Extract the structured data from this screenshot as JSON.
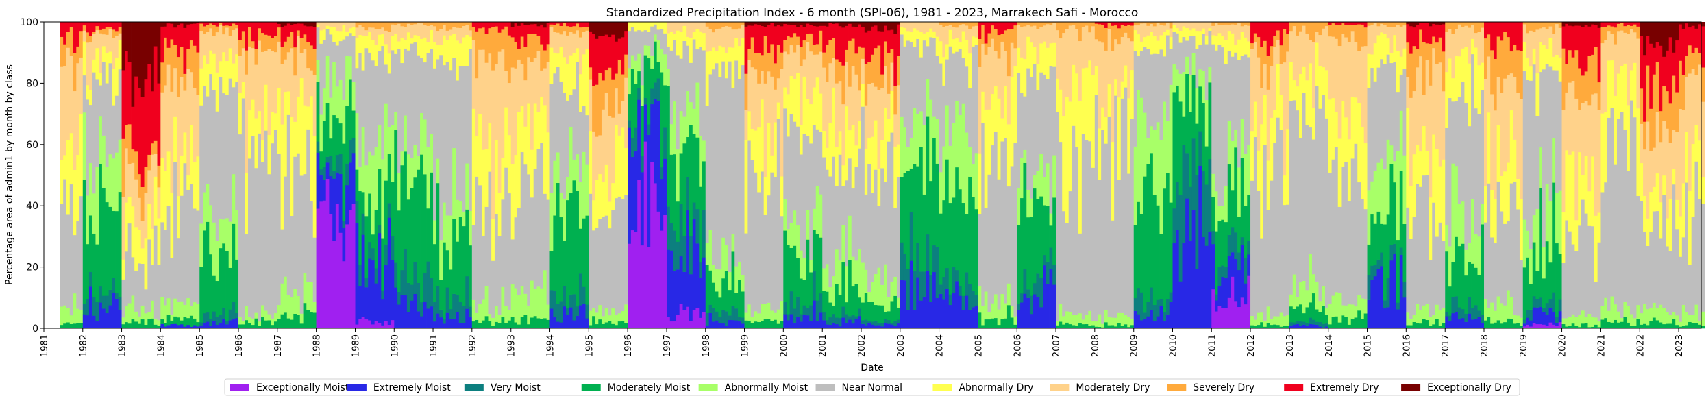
{
  "chart_data": {
    "type": "bar",
    "stacked": true,
    "title": "Standardized Precipitation Index - 6 month (SPI-06), 1981 - 2023, Marrakech Safi - Morocco",
    "xlabel": "Date",
    "ylabel": "Percentage area of admin1 by month by class",
    "ylim": [
      0,
      100
    ],
    "yticks": [
      0,
      20,
      40,
      60,
      80,
      100
    ],
    "xlim": [
      "1981-01",
      "2023-08"
    ],
    "xticks": [
      "1981",
      "1982",
      "1983",
      "1984",
      "1985",
      "1986",
      "1987",
      "1988",
      "1989",
      "1990",
      "1991",
      "1992",
      "1993",
      "1994",
      "1995",
      "1996",
      "1997",
      "1998",
      "1999",
      "2000",
      "2001",
      "2002",
      "2003",
      "2004",
      "2005",
      "2006",
      "2007",
      "2008",
      "2009",
      "2010",
      "2011",
      "2012",
      "2013",
      "2014",
      "2015",
      "2016",
      "2017",
      "2018",
      "2019",
      "2020",
      "2021",
      "2022",
      "2023"
    ],
    "grid": false,
    "legend_position": "bottom-center",
    "classes": [
      {
        "name": "Exceptionally Moist",
        "color": "#a020f0"
      },
      {
        "name": "Extremely Moist",
        "color": "#2828e6"
      },
      {
        "name": "Very Moist",
        "color": "#0c7f7f"
      },
      {
        "name": "Moderately Moist",
        "color": "#00b050"
      },
      {
        "name": "Abnormally Moist",
        "color": "#a8ff68"
      },
      {
        "name": "Near Normal",
        "color": "#bebebe"
      },
      {
        "name": "Abnormally Dry",
        "color": "#ffff50"
      },
      {
        "name": "Moderately Dry",
        "color": "#ffd28a"
      },
      {
        "name": "Severely Dry",
        "color": "#ffaa3c"
      },
      {
        "name": "Extremely Dry",
        "color": "#f0001e"
      },
      {
        "name": "Exceptionally Dry",
        "color": "#780000"
      }
    ],
    "series_note": "",
    "year_profiles": {
      "1981": [
        0,
        0,
        0,
        2,
        5,
        35,
        20,
        25,
        8,
        5,
        0
      ],
      "1982": [
        0,
        6,
        4,
        30,
        15,
        25,
        8,
        8,
        2,
        2,
        0
      ],
      "1983": [
        0,
        0,
        0,
        2,
        3,
        18,
        12,
        12,
        8,
        25,
        20
      ],
      "1984": [
        0,
        1,
        0,
        3,
        5,
        30,
        15,
        25,
        12,
        8,
        1
      ],
      "1985": [
        0,
        2,
        3,
        20,
        12,
        40,
        10,
        10,
        2,
        1,
        0
      ],
      "1986": [
        0,
        0,
        0,
        2,
        3,
        55,
        12,
        18,
        5,
        5,
        0
      ],
      "1987": [
        0,
        0,
        0,
        4,
        6,
        45,
        20,
        15,
        5,
        4,
        1
      ],
      "1988": [
        35,
        15,
        5,
        15,
        10,
        15,
        3,
        2,
        0,
        0,
        0
      ],
      "1989": [
        2,
        20,
        5,
        15,
        20,
        25,
        6,
        5,
        2,
        0,
        0
      ],
      "1990": [
        0,
        10,
        8,
        30,
        12,
        30,
        5,
        4,
        1,
        0,
        0
      ],
      "1991": [
        0,
        3,
        5,
        20,
        12,
        45,
        8,
        5,
        2,
        0,
        0
      ],
      "1992": [
        0,
        0,
        0,
        2,
        5,
        30,
        20,
        30,
        10,
        3,
        0
      ],
      "1993": [
        0,
        0,
        0,
        3,
        8,
        35,
        20,
        20,
        7,
        6,
        1
      ],
      "1994": [
        0,
        5,
        6,
        25,
        15,
        30,
        10,
        6,
        2,
        1,
        0
      ],
      "1995": [
        0,
        0,
        0,
        2,
        5,
        30,
        15,
        20,
        12,
        12,
        4
      ],
      "1996": [
        40,
        25,
        5,
        15,
        5,
        8,
        2,
        0,
        0,
        0,
        0
      ],
      "1997": [
        5,
        20,
        10,
        25,
        12,
        20,
        5,
        3,
        0,
        0,
        0
      ],
      "1998": [
        0,
        2,
        3,
        10,
        8,
        60,
        10,
        5,
        2,
        0,
        0
      ],
      "1999": [
        0,
        0,
        0,
        2,
        4,
        40,
        15,
        20,
        10,
        8,
        1
      ],
      "2000": [
        0,
        5,
        5,
        15,
        10,
        30,
        12,
        12,
        6,
        4,
        1
      ],
      "2001": [
        0,
        2,
        2,
        8,
        8,
        30,
        15,
        18,
        8,
        8,
        1
      ],
      "2002": [
        0,
        1,
        1,
        5,
        8,
        35,
        15,
        15,
        8,
        10,
        2
      ],
      "2003": [
        0,
        15,
        10,
        30,
        15,
        22,
        5,
        3,
        0,
        0,
        0
      ],
      "2004": [
        0,
        10,
        5,
        30,
        15,
        30,
        5,
        4,
        1,
        0,
        0
      ],
      "2005": [
        0,
        0,
        0,
        3,
        6,
        45,
        20,
        18,
        5,
        3,
        0
      ],
      "2006": [
        0,
        15,
        5,
        20,
        10,
        35,
        8,
        6,
        1,
        0,
        0
      ],
      "2007": [
        0,
        0,
        0,
        1,
        3,
        50,
        25,
        18,
        3,
        0,
        0
      ],
      "2008": [
        0,
        0,
        0,
        1,
        3,
        55,
        15,
        20,
        5,
        1,
        0
      ],
      "2009": [
        0,
        5,
        5,
        35,
        20,
        25,
        5,
        4,
        1,
        0,
        0
      ],
      "2010": [
        0,
        30,
        20,
        25,
        10,
        10,
        3,
        2,
        0,
        0,
        0
      ],
      "2011": [
        10,
        10,
        5,
        15,
        10,
        40,
        5,
        4,
        1,
        0,
        0
      ],
      "2012": [
        0,
        0,
        0,
        1,
        3,
        45,
        20,
        20,
        6,
        5,
        0
      ],
      "2013": [
        0,
        1,
        1,
        5,
        8,
        55,
        15,
        12,
        3,
        0,
        0
      ],
      "2014": [
        0,
        0,
        0,
        3,
        6,
        45,
        20,
        20,
        5,
        1,
        0
      ],
      "2015": [
        0,
        15,
        5,
        20,
        15,
        30,
        8,
        6,
        1,
        0,
        0
      ],
      "2016": [
        0,
        0,
        0,
        2,
        4,
        30,
        20,
        25,
        12,
        6,
        1
      ],
      "2017": [
        0,
        3,
        3,
        20,
        15,
        35,
        12,
        10,
        2,
        0,
        0
      ],
      "2018": [
        0,
        0,
        0,
        2,
        5,
        30,
        15,
        25,
        15,
        8,
        0
      ],
      "2019": [
        1,
        3,
        3,
        20,
        15,
        40,
        8,
        8,
        2,
        0,
        0
      ],
      "2020": [
        0,
        0,
        0,
        1,
        3,
        25,
        20,
        25,
        15,
        10,
        1
      ],
      "2021": [
        0,
        0,
        0,
        2,
        4,
        60,
        15,
        15,
        3,
        1,
        0
      ],
      "2022": [
        0,
        0,
        0,
        2,
        4,
        30,
        12,
        18,
        12,
        15,
        7
      ],
      "2023": [
        0,
        0,
        0,
        1,
        3,
        35,
        15,
        25,
        12,
        8,
        1
      ]
    }
  }
}
